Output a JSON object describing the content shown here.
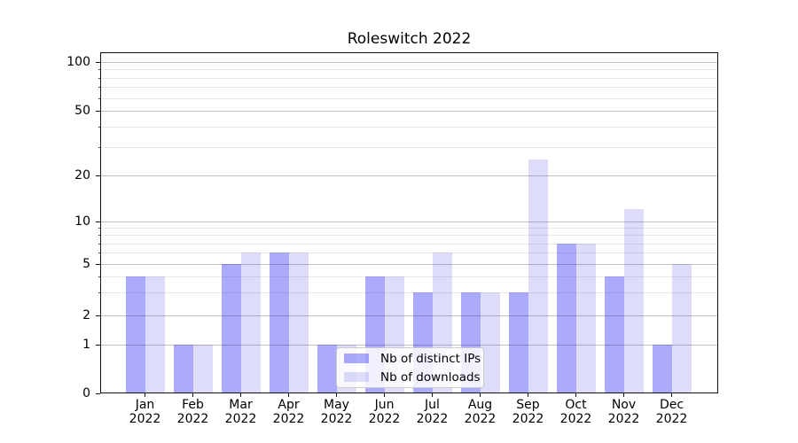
{
  "chart_data": {
    "type": "bar",
    "title": "Roleswitch 2022",
    "categories": [
      "Jan",
      "Feb",
      "Mar",
      "Apr",
      "May",
      "Jun",
      "Jul",
      "Aug",
      "Sep",
      "Oct",
      "Nov",
      "Dec"
    ],
    "x_tick_second_line": "2022",
    "series": [
      {
        "name": "Nb of distinct IPs",
        "fill": "rgba(13,13,242,0.35)",
        "hex_on_white": "#aaaafa",
        "values": [
          4,
          1,
          5,
          6,
          1,
          4,
          3,
          3,
          3,
          7,
          4,
          1
        ]
      },
      {
        "name": "Nb of downloads",
        "fill": "rgba(26,26,224,0.15)",
        "hex_on_white": "#dcdcfa",
        "values": [
          4,
          1,
          6,
          6,
          1,
          4,
          6,
          3,
          25,
          7,
          12,
          5
        ]
      }
    ],
    "y_axis": {
      "scale": "symlog",
      "tick_values": [
        100,
        50,
        20,
        10,
        5,
        2,
        1,
        0
      ],
      "tick_labels": [
        "100",
        "50",
        "20",
        "10",
        "5",
        "2",
        "1",
        "0"
      ],
      "minor_gridline_values": [
        3,
        4,
        6,
        7,
        8,
        9,
        30,
        40,
        60,
        70,
        80,
        90
      ],
      "ylim": [
        0,
        140
      ]
    },
    "grid": {
      "major_color": "#c2c2c2",
      "minor_color": "#e9e9e9"
    },
    "legend": {
      "position": "lower-center-inside"
    },
    "xlabel": "",
    "ylabel": ""
  }
}
